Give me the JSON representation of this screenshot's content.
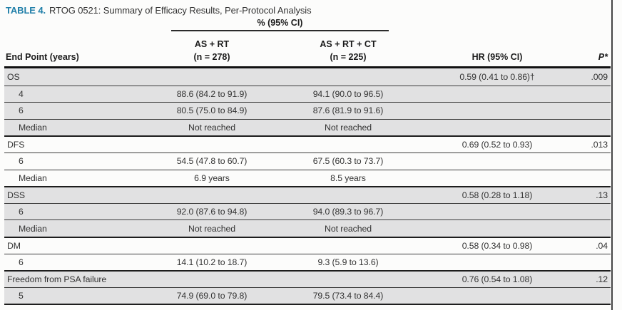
{
  "title": {
    "label": "TABLE 4.",
    "text": "RTOG 0521: Summary of Efficacy Results, Per-Protocol Analysis"
  },
  "table": {
    "spanner_header": "% (95% CI)",
    "columns": {
      "endpoint": "End Point (years)",
      "group1": [
        "AS + RT",
        "(n = 278)"
      ],
      "group2": [
        "AS + RT + CT",
        "(n = 225)"
      ],
      "hr": "HR (95% CI)",
      "p": "P*"
    },
    "rows": [
      {
        "label": "OS",
        "indent": false,
        "group_start": false,
        "shaded": true,
        "as_rt": "",
        "as_rt_ct": "",
        "hr": "0.59 (0.41 to 0.86)†",
        "p": ".009"
      },
      {
        "label": "4",
        "indent": true,
        "group_start": false,
        "shaded": true,
        "as_rt": "88.6 (84.2 to 91.9)",
        "as_rt_ct": "94.1 (90.0 to 96.5)",
        "hr": "",
        "p": ""
      },
      {
        "label": "6",
        "indent": true,
        "group_start": false,
        "shaded": true,
        "as_rt": "80.5 (75.0 to 84.9)",
        "as_rt_ct": "87.6 (81.9 to 91.6)",
        "hr": "",
        "p": ""
      },
      {
        "label": "Median",
        "indent": true,
        "group_start": false,
        "shaded": true,
        "as_rt": "Not reached",
        "as_rt_ct": "Not reached",
        "hr": "",
        "p": ""
      },
      {
        "label": "DFS",
        "indent": false,
        "group_start": true,
        "shaded": false,
        "as_rt": "",
        "as_rt_ct": "",
        "hr": "0.69 (0.52 to 0.93)",
        "p": ".013"
      },
      {
        "label": "6",
        "indent": true,
        "group_start": false,
        "shaded": false,
        "as_rt": "54.5 (47.8 to 60.7)",
        "as_rt_ct": "67.5 (60.3 to 73.7)",
        "hr": "",
        "p": ""
      },
      {
        "label": "Median",
        "indent": true,
        "group_start": false,
        "shaded": false,
        "as_rt": "6.9 years",
        "as_rt_ct": "8.5 years",
        "hr": "",
        "p": ""
      },
      {
        "label": "DSS",
        "indent": false,
        "group_start": true,
        "shaded": true,
        "as_rt": "",
        "as_rt_ct": "",
        "hr": "0.58 (0.28 to 1.18)",
        "p": ".13"
      },
      {
        "label": "6",
        "indent": true,
        "group_start": false,
        "shaded": true,
        "as_rt": "92.0 (87.6 to 94.8)",
        "as_rt_ct": "94.0 (89.3 to 96.7)",
        "hr": "",
        "p": ""
      },
      {
        "label": "Median",
        "indent": true,
        "group_start": false,
        "shaded": true,
        "as_rt": "Not reached",
        "as_rt_ct": "Not reached",
        "hr": "",
        "p": ""
      },
      {
        "label": "DM",
        "indent": false,
        "group_start": true,
        "shaded": false,
        "as_rt": "",
        "as_rt_ct": "",
        "hr": "0.58 (0.34 to 0.98)",
        "p": ".04"
      },
      {
        "label": "6",
        "indent": true,
        "group_start": false,
        "shaded": false,
        "as_rt": "14.1 (10.2 to 18.7)",
        "as_rt_ct": "9.3 (5.9 to 13.6)",
        "hr": "",
        "p": ""
      },
      {
        "label": "Freedom from PSA failure",
        "indent": false,
        "group_start": true,
        "shaded": true,
        "as_rt": "",
        "as_rt_ct": "",
        "hr": "0.76 (0.54 to 1.08)",
        "p": ".12"
      },
      {
        "label": "5",
        "indent": true,
        "group_start": false,
        "shaded": true,
        "as_rt": "74.9 (69.0 to 79.8)",
        "as_rt_ct": "79.5 (73.4 to 84.4)",
        "hr": "",
        "p": ""
      }
    ]
  },
  "colors": {
    "accent_teal": "#1f7ea8",
    "row_shade": "#e1e1e2",
    "rule_dark": "#1d1d1d",
    "rule_thin": "#3c3c3c"
  }
}
